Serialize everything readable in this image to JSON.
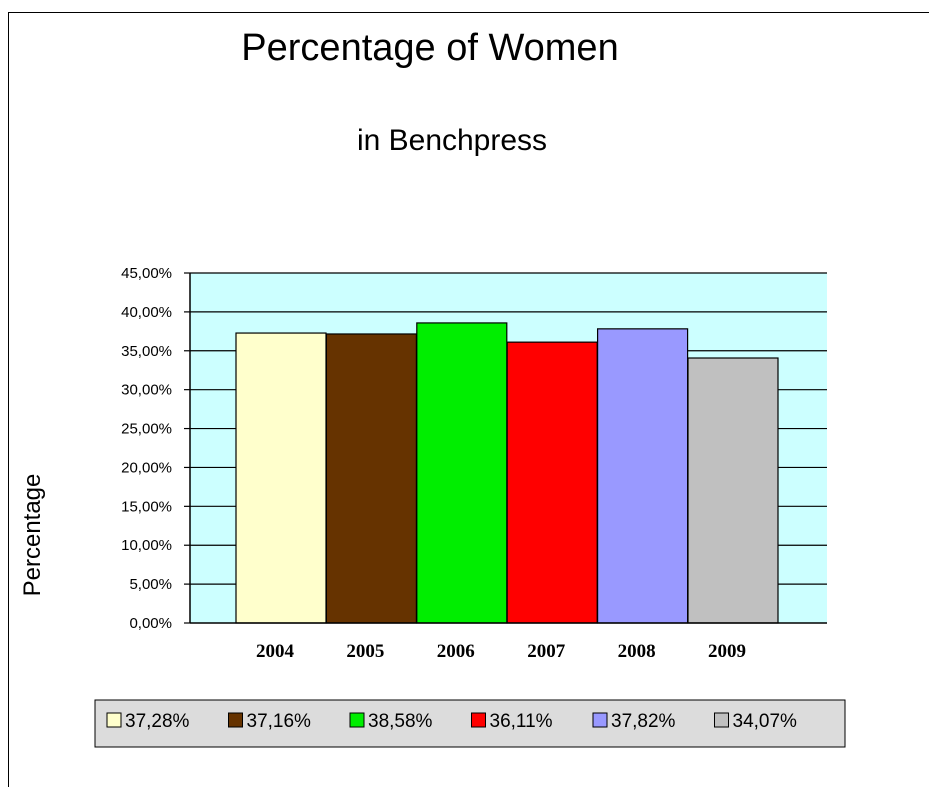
{
  "chart_data": {
    "type": "bar",
    "title": "Percentage of Women",
    "subtitle": "in Benchpress",
    "xlabel": "",
    "ylabel": "Percentage",
    "categories": [
      "2004",
      "2005",
      "2006",
      "2007",
      "2008",
      "2009"
    ],
    "values": [
      37.28,
      37.16,
      38.58,
      36.11,
      37.82,
      34.07
    ],
    "value_labels": [
      "37,28%",
      "37,16%",
      "38,58%",
      "36,11%",
      "37,82%",
      "34,07%"
    ],
    "ylim": [
      0,
      45
    ],
    "yticks": [
      0,
      5,
      10,
      15,
      20,
      25,
      30,
      35,
      40,
      45
    ],
    "ytick_labels": [
      "0,00%",
      "5,00%",
      "10,00%",
      "15,00%",
      "20,00%",
      "25,00%",
      "30,00%",
      "35,00%",
      "40,00%",
      "45,00%"
    ],
    "bar_colors": [
      "#ffffcc",
      "#663300",
      "#00ee00",
      "#ff0000",
      "#9999ff",
      "#c0c0c0"
    ],
    "plot_background": "#ccffff",
    "legend_background": "#dcdcdc",
    "grid": true,
    "legend_position": "bottom"
  }
}
